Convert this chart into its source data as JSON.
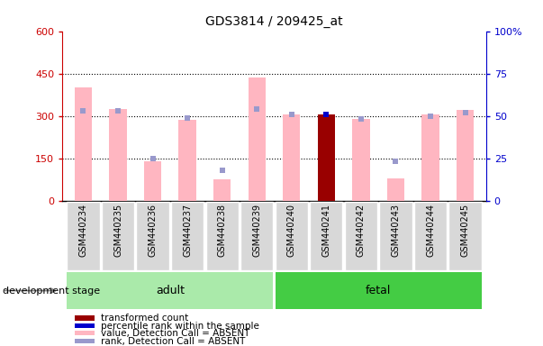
{
  "title": "GDS3814 / 209425_at",
  "samples": [
    "GSM440234",
    "GSM440235",
    "GSM440236",
    "GSM440237",
    "GSM440238",
    "GSM440239",
    "GSM440240",
    "GSM440241",
    "GSM440242",
    "GSM440243",
    "GSM440244",
    "GSM440245"
  ],
  "groups": [
    "adult",
    "adult",
    "adult",
    "adult",
    "adult",
    "adult",
    "fetal",
    "fetal",
    "fetal",
    "fetal",
    "fetal",
    "fetal"
  ],
  "pink_values": [
    400,
    325,
    140,
    285,
    75,
    435,
    305,
    305,
    290,
    80,
    305,
    320
  ],
  "rank_pct": [
    53,
    53,
    25,
    49,
    18,
    54,
    51,
    51,
    48,
    23,
    50,
    52
  ],
  "present_mask": [
    false,
    false,
    false,
    false,
    false,
    false,
    false,
    true,
    false,
    false,
    false,
    false
  ],
  "ylim_left": [
    0,
    600
  ],
  "ylim_right": [
    0,
    100
  ],
  "yticks_left": [
    0,
    150,
    300,
    450,
    600
  ],
  "yticks_right": [
    0,
    25,
    50,
    75,
    100
  ],
  "adult_color": "#aaeaaa",
  "fetal_color": "#44cc44",
  "bar_width": 0.5,
  "pink_color": "#FFB6C1",
  "lightblue_color": "#9999cc",
  "red_color": "#990000",
  "blue_color": "#0000CC",
  "left_tick_color": "#CC0000",
  "right_tick_color": "#0000CC",
  "bg_color": "#d8d8d8",
  "legend_items": [
    {
      "label": "transformed count",
      "color": "#990000"
    },
    {
      "label": "percentile rank within the sample",
      "color": "#0000CC"
    },
    {
      "label": "value, Detection Call = ABSENT",
      "color": "#FFB6C1"
    },
    {
      "label": "rank, Detection Call = ABSENT",
      "color": "#9999cc"
    }
  ],
  "development_stage_label": "development stage"
}
